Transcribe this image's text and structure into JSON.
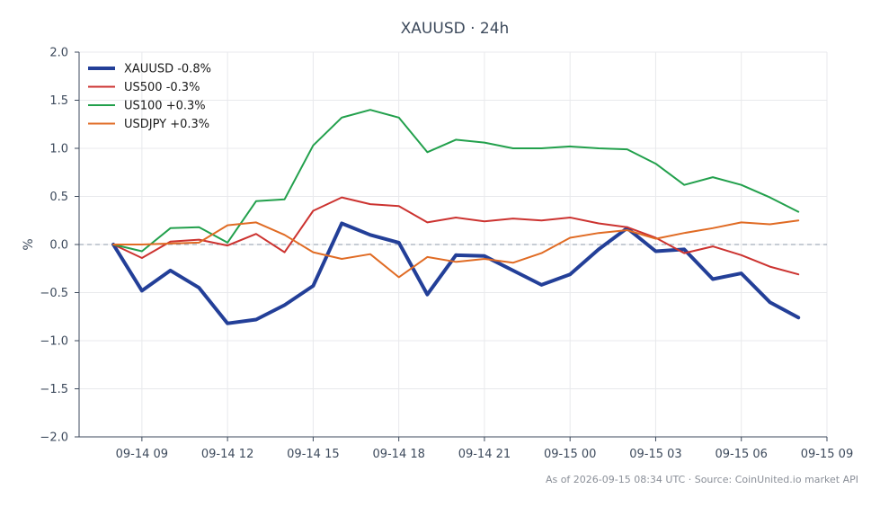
{
  "chart_data": {
    "type": "line",
    "title": "XAUUSD · 24h",
    "xlabel": "",
    "ylabel": "%",
    "ylim": [
      -2.0,
      2.0
    ],
    "yticks": [
      2.0,
      1.5,
      1.0,
      0.5,
      0.0,
      -0.5,
      -1.0,
      -1.5,
      -2.0
    ],
    "ytick_labels": [
      "2.0",
      "1.5",
      "1.0",
      "0.5",
      "0.0",
      "−0.5",
      "−1.0",
      "−1.5",
      "−2.0"
    ],
    "xlim_hours": [
      -1.2,
      25
    ],
    "xticks": [
      {
        "label": "09-14 09",
        "h": 1
      },
      {
        "label": "09-14 12",
        "h": 4
      },
      {
        "label": "09-14 15",
        "h": 7
      },
      {
        "label": "09-14 18",
        "h": 10
      },
      {
        "label": "09-14 21",
        "h": 13
      },
      {
        "label": "09-15 00",
        "h": 16
      },
      {
        "label": "09-15 03",
        "h": 19
      },
      {
        "label": "09-15 06",
        "h": 22
      },
      {
        "label": "09-15 09",
        "h": 25
      }
    ],
    "x_hours": [
      0,
      1,
      2,
      3,
      4,
      5,
      6,
      7,
      8,
      9,
      10,
      11,
      12,
      13,
      14,
      15,
      16,
      17,
      18,
      19,
      20,
      21,
      22,
      23,
      24
    ],
    "grid": true,
    "legend_position": "top-left",
    "zero_line": true,
    "series": [
      {
        "name": "XAUUSD -0.8%",
        "color": "#233f98",
        "width": 4,
        "values": [
          0.0,
          -0.48,
          -0.27,
          -0.45,
          -0.82,
          -0.78,
          -0.63,
          -0.43,
          0.22,
          0.1,
          0.02,
          -0.52,
          -0.11,
          -0.12,
          -0.27,
          -0.42,
          -0.31,
          -0.05,
          0.17,
          -0.07,
          -0.05,
          -0.36,
          -0.3,
          -0.6,
          -0.76
        ]
      },
      {
        "name": "US500 -0.3%",
        "color": "#cc3330",
        "width": 2,
        "values": [
          0.0,
          -0.14,
          0.03,
          0.05,
          -0.01,
          0.11,
          -0.08,
          0.35,
          0.49,
          0.42,
          0.4,
          0.23,
          0.28,
          0.24,
          0.27,
          0.25,
          0.28,
          0.22,
          0.18,
          0.07,
          -0.09,
          -0.02,
          -0.11,
          -0.23,
          -0.31
        ]
      },
      {
        "name": "US100 +0.3%",
        "color": "#22a04c",
        "width": 2,
        "values": [
          0.0,
          -0.07,
          0.17,
          0.18,
          0.02,
          0.45,
          0.47,
          1.03,
          1.32,
          1.4,
          1.32,
          0.96,
          1.09,
          1.06,
          1.0,
          1.0,
          1.02,
          1.0,
          0.99,
          0.84,
          0.62,
          0.7,
          0.62,
          0.49,
          0.34
        ]
      },
      {
        "name": "USDJPY +0.3%",
        "color": "#e06b24",
        "width": 2,
        "values": [
          0.0,
          0.0,
          0.01,
          0.02,
          0.2,
          0.23,
          0.1,
          -0.08,
          -0.15,
          -0.1,
          -0.34,
          -0.13,
          -0.18,
          -0.15,
          -0.19,
          -0.09,
          0.07,
          0.12,
          0.15,
          0.06,
          0.12,
          0.17,
          0.23,
          0.21,
          0.25
        ]
      }
    ]
  },
  "footer": "As of 2026-09-15 08:34 UTC · Source: CoinUnited.io market API"
}
